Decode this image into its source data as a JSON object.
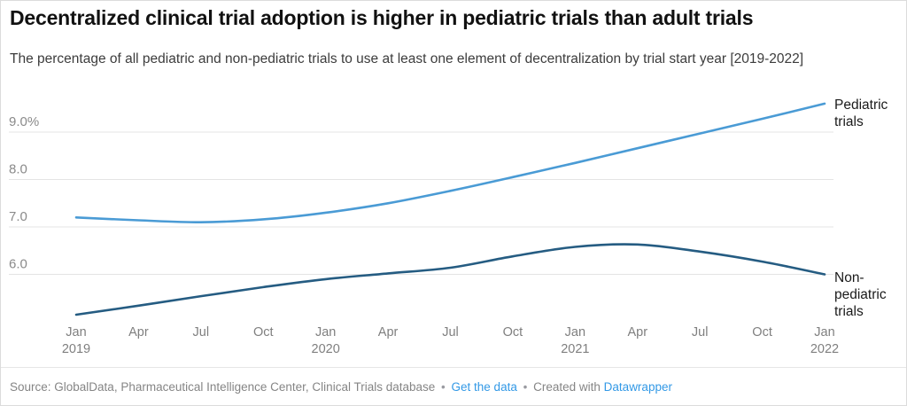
{
  "header": {
    "title": "Decentralized clinical trial adoption is higher in pediatric trials than adult trials",
    "subtitle": "The percentage of all pediatric and non-pediatric trials to use at least one element of decentralization by trial start year [2019-2022]"
  },
  "chart_data": {
    "type": "line",
    "x": [
      "Jan 2019",
      "Apr 2019",
      "Jul 2019",
      "Oct 2019",
      "Jan 2020",
      "Apr 2020",
      "Jul 2020",
      "Oct 2020",
      "Jan 2021",
      "Apr 2021",
      "Jul 2021",
      "Oct 2021",
      "Jan 2022"
    ],
    "x_ticks": [
      {
        "month": "Jan",
        "year": "2019"
      },
      {
        "month": "Apr"
      },
      {
        "month": "Jul"
      },
      {
        "month": "Oct"
      },
      {
        "month": "Jan",
        "year": "2020"
      },
      {
        "month": "Apr"
      },
      {
        "month": "Jul"
      },
      {
        "month": "Oct"
      },
      {
        "month": "Jan",
        "year": "2021"
      },
      {
        "month": "Apr"
      },
      {
        "month": "Jul"
      },
      {
        "month": "Oct"
      },
      {
        "month": "Jan",
        "year": "2022"
      }
    ],
    "y_ticks": [
      {
        "value": 9.0,
        "label": "9.0%"
      },
      {
        "value": 8.0,
        "label": "8.0"
      },
      {
        "value": 7.0,
        "label": "7.0"
      },
      {
        "value": 6.0,
        "label": "6.0"
      }
    ],
    "ylim": [
      5.0,
      9.7
    ],
    "grid": true,
    "unit": "%",
    "series": [
      {
        "name": "Pediatric trials",
        "color": "#4a9bd5",
        "values": [
          7.2,
          7.14,
          7.1,
          7.16,
          7.3,
          7.5,
          7.76,
          8.05,
          8.35,
          8.66,
          8.97,
          9.28,
          9.6
        ]
      },
      {
        "name": "Non-pediatric trials",
        "color": "#255c82",
        "values": [
          5.15,
          5.34,
          5.54,
          5.73,
          5.9,
          6.02,
          6.14,
          6.38,
          6.58,
          6.63,
          6.48,
          6.27,
          6.0
        ]
      }
    ],
    "legend_position": "line-end-right"
  },
  "labels": {
    "pediatric": "Pediatric trials",
    "non_pediatric": "Non-pediatric trials"
  },
  "footer": {
    "source_prefix": "Source: GlobalData, Pharmaceutical Intelligence Center, Clinical Trials database",
    "separator": "•",
    "get_data_link": "Get the data",
    "created_with": "Created with",
    "datawrapper_link": "Datawrapper",
    "link_color": "#3399e6"
  },
  "colors": {
    "grid": "#e4e4e4",
    "axis_label": "#8a8a8a",
    "title": "#111111",
    "subtitle": "#3c3c3c",
    "footer_text": "#858585"
  }
}
